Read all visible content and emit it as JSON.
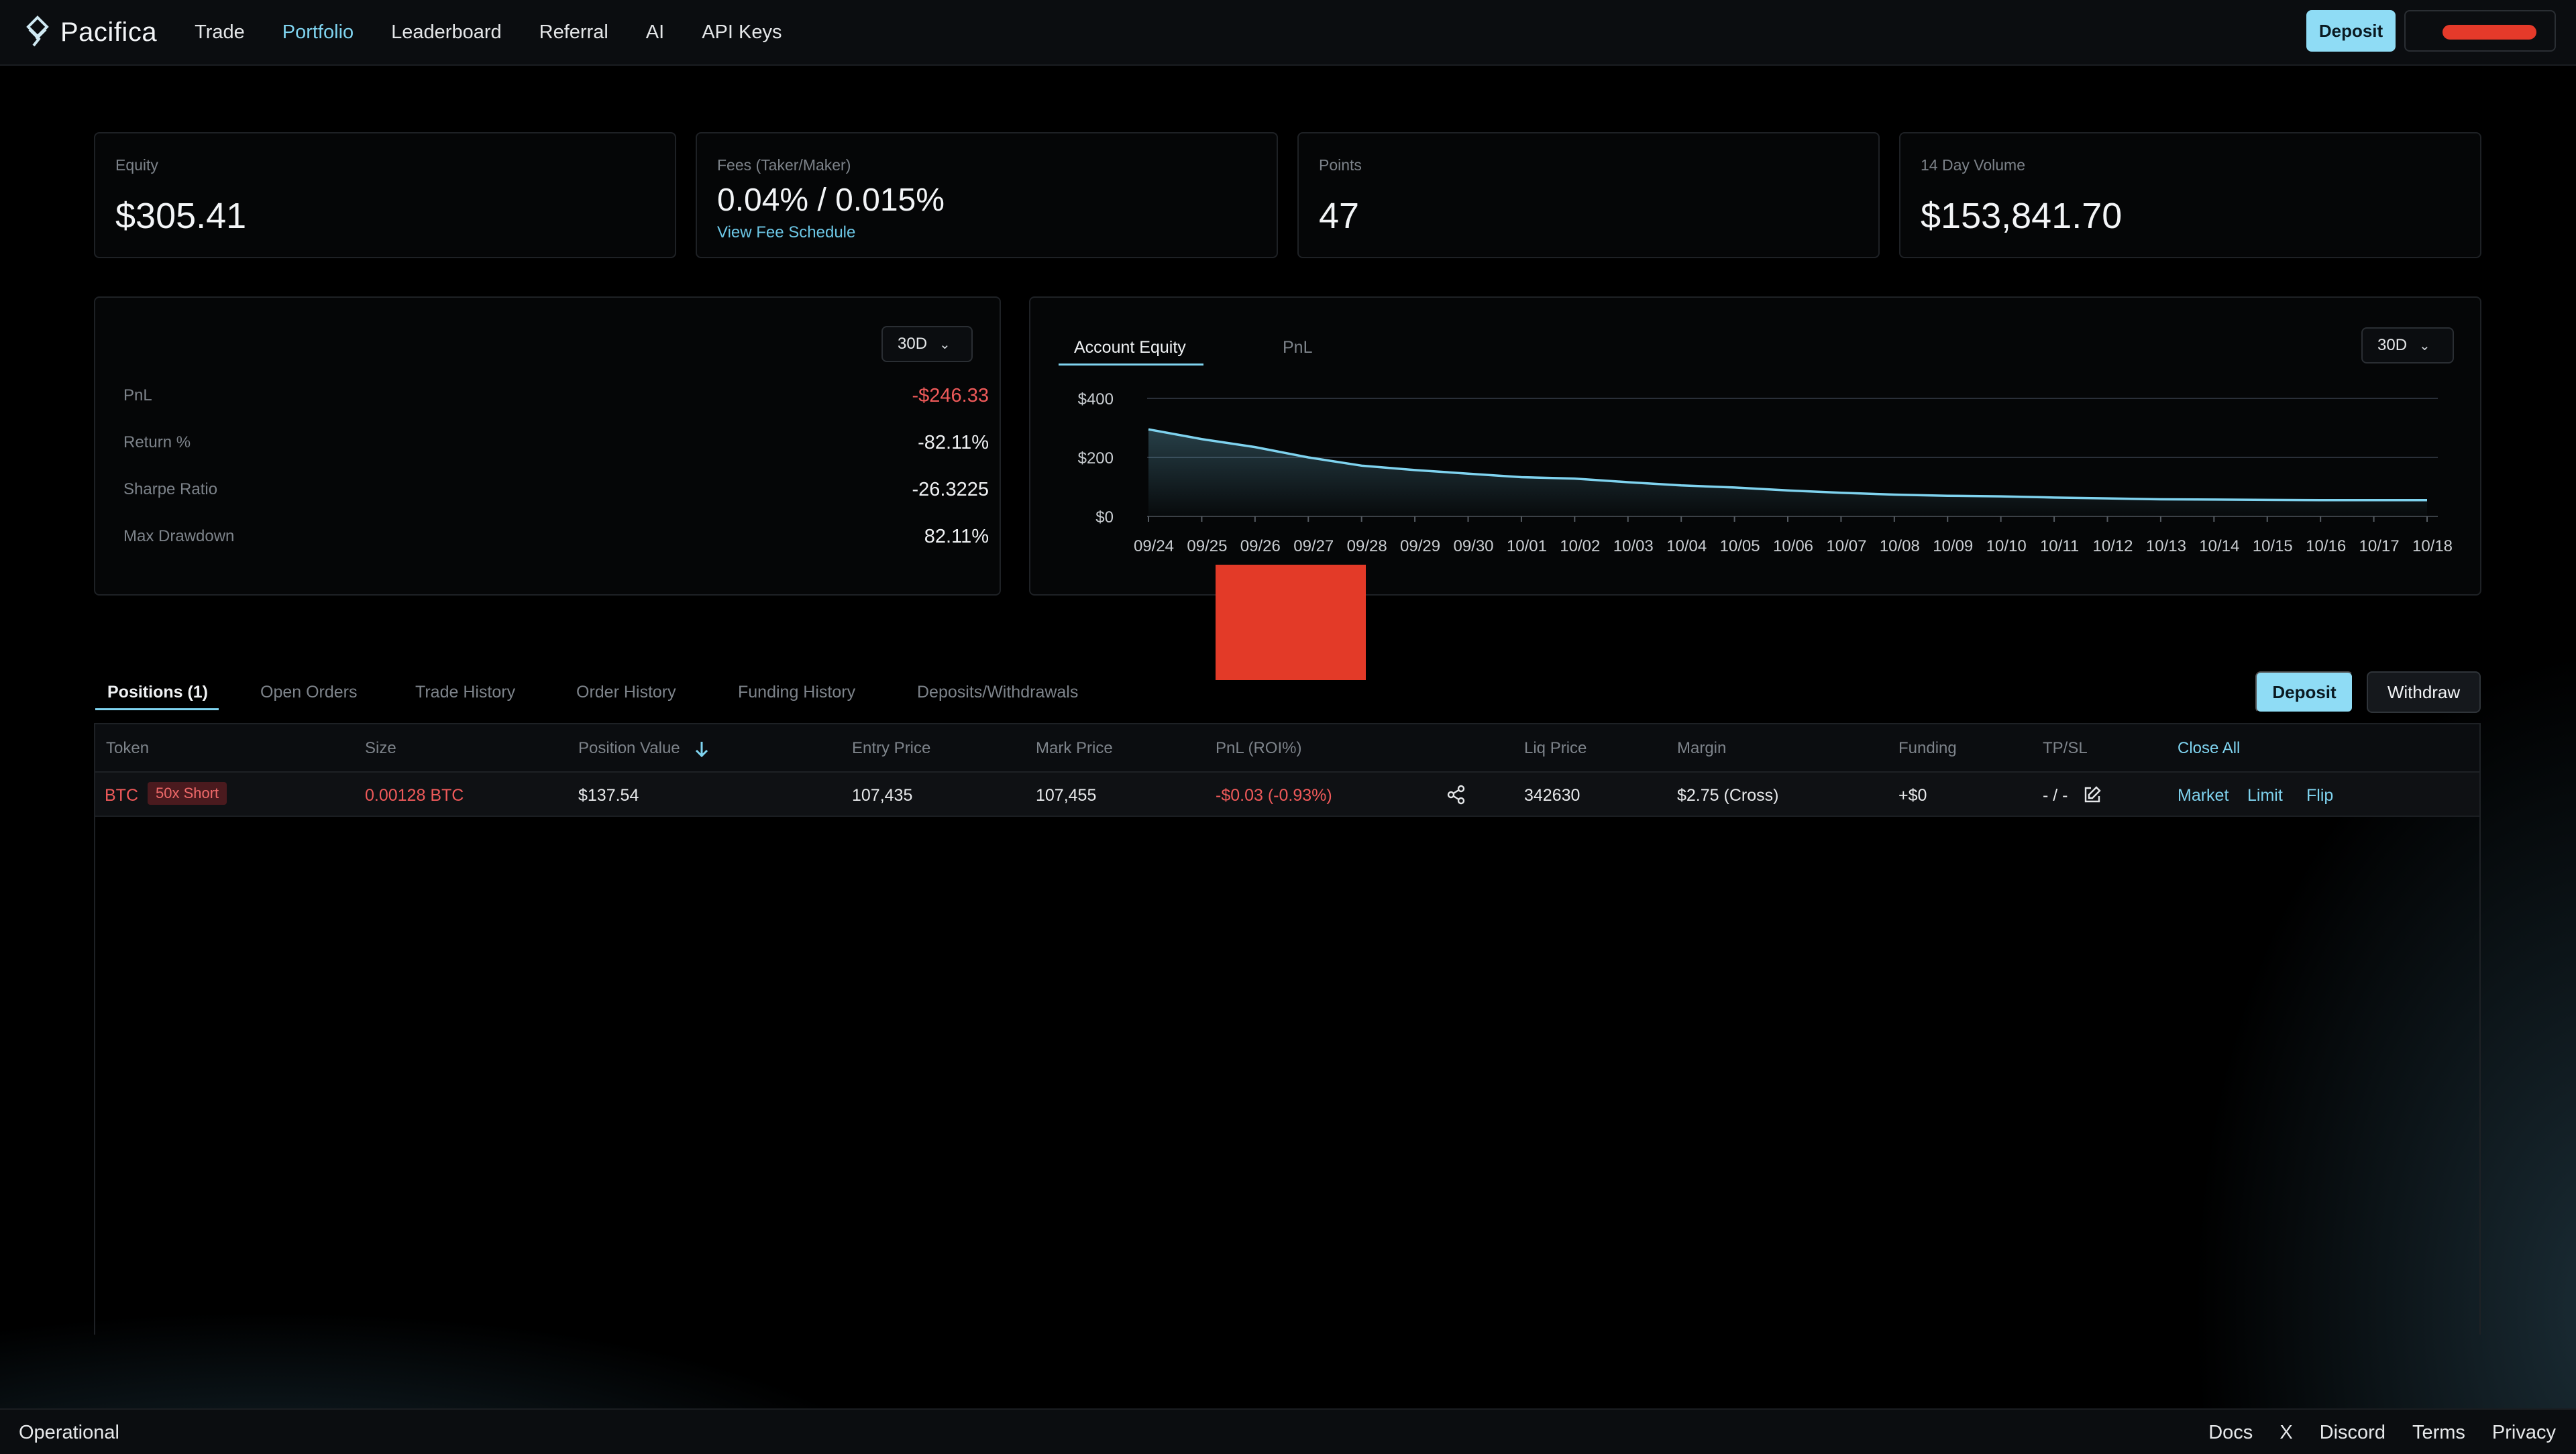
{
  "brand": {
    "name": "Pacifica"
  },
  "nav": {
    "items": [
      {
        "label": "Trade",
        "active": false
      },
      {
        "label": "Portfolio",
        "active": true
      },
      {
        "label": "Leaderboard",
        "active": false
      },
      {
        "label": "Referral",
        "active": false
      },
      {
        "label": "AI",
        "active": false
      },
      {
        "label": "API Keys",
        "active": false
      }
    ],
    "deposit_label": "Deposit"
  },
  "stats": {
    "equity": {
      "label": "Equity",
      "value": "$305.41"
    },
    "fees": {
      "label": "Fees (Taker/Maker)",
      "value": "0.04% / 0.015%",
      "link": "View Fee Schedule"
    },
    "points": {
      "label": "Points",
      "value": "47"
    },
    "volume": {
      "label": "14 Day Volume",
      "value": "$153,841.70"
    }
  },
  "metrics": {
    "period": "30D",
    "rows": [
      {
        "label": "PnL",
        "value": "-$246.33",
        "negative": true
      },
      {
        "label": "Return %",
        "value": "-82.11%",
        "negative": false
      },
      {
        "label": "Sharpe Ratio",
        "value": "-26.3225",
        "negative": false
      },
      {
        "label": "Max Drawdown",
        "value": "82.11%",
        "negative": false
      }
    ]
  },
  "chart_tabs": {
    "equity": "Account Equity",
    "pnl": "PnL",
    "period": "30D"
  },
  "chart_data": {
    "type": "area",
    "title": "",
    "xlabel": "",
    "ylabel": "",
    "ylim": [
      0,
      400
    ],
    "yticks": [
      "$0",
      "$200",
      "$400"
    ],
    "yticks_values": [
      0,
      200,
      400
    ],
    "grid": true,
    "color": "#7fd3ef",
    "categories": [
      "09/24",
      "09/25",
      "09/26",
      "09/27",
      "09/28",
      "09/29",
      "09/30",
      "10/01",
      "10/02",
      "10/03",
      "10/04",
      "10/05",
      "10/06",
      "10/07",
      "10/08",
      "10/09",
      "10/10",
      "10/11",
      "10/12",
      "10/13",
      "10/14",
      "10/15",
      "10/16",
      "10/17",
      "10/18"
    ],
    "values": [
      295,
      262,
      235,
      200,
      172,
      157,
      145,
      133,
      128,
      116,
      105,
      98,
      88,
      80,
      74,
      70,
      68,
      64,
      61,
      58,
      57,
      56,
      55,
      55,
      55
    ]
  },
  "tabs": [
    {
      "label": "Positions (1)",
      "active": true
    },
    {
      "label": "Open Orders",
      "active": false
    },
    {
      "label": "Trade History",
      "active": false
    },
    {
      "label": "Order History",
      "active": false
    },
    {
      "label": "Funding History",
      "active": false
    },
    {
      "label": "Deposits/Withdrawals",
      "active": false
    }
  ],
  "actions": {
    "deposit": "Deposit",
    "withdraw": "Withdraw"
  },
  "table": {
    "headers": {
      "token": "Token",
      "size": "Size",
      "position_value": "Position Value",
      "entry_price": "Entry Price",
      "mark_price": "Mark Price",
      "pnl": "PnL (ROI%)",
      "liq_price": "Liq Price",
      "margin": "Margin",
      "funding": "Funding",
      "tpsl": "TP/SL",
      "close_all": "Close All"
    },
    "row": {
      "token": "BTC",
      "badge": "50x Short",
      "size": "0.00128 BTC",
      "position_value": "$137.54",
      "entry_price": "107,435",
      "mark_price": "107,455",
      "pnl": "-$0.03 (-0.93%)",
      "liq_price": "342630",
      "margin": "$2.75 (Cross)",
      "funding": "+$0",
      "tpsl": "- / -",
      "market": "Market",
      "limit": "Limit",
      "flip": "Flip"
    }
  },
  "footer": {
    "status": "Operational",
    "links": [
      "Docs",
      "X",
      "Discord",
      "Terms",
      "Privacy"
    ]
  }
}
